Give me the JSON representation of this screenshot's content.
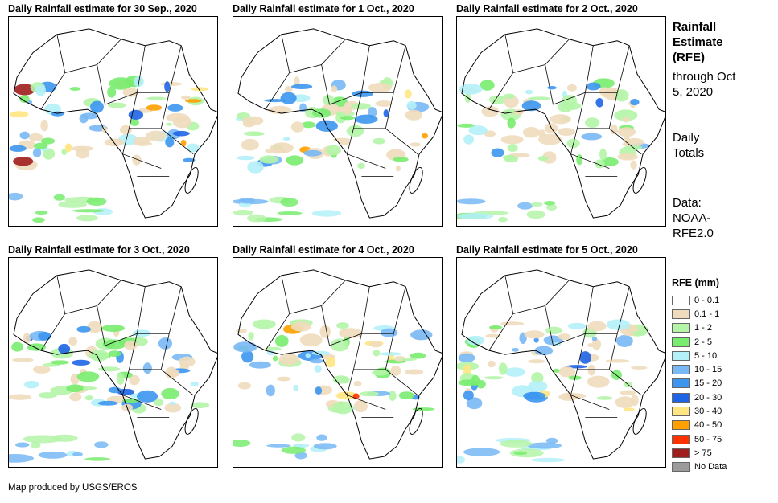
{
  "panels": [
    {
      "title": "Daily Rainfall estimate for 30 Sep., 2020",
      "seed": 11,
      "intensity": 1.0
    },
    {
      "title": "Daily Rainfall estimate for 1 Oct., 2020",
      "seed": 23,
      "intensity": 0.8
    },
    {
      "title": "Daily Rainfall estimate for 2 Oct., 2020",
      "seed": 37,
      "intensity": 0.6
    },
    {
      "title": "Daily Rainfall estimate for 3 Oct., 2020",
      "seed": 41,
      "intensity": 0.7
    },
    {
      "title": "Daily Rainfall estimate for 4 Oct., 2020",
      "seed": 53,
      "intensity": 0.9
    },
    {
      "title": "Daily Rainfall estimate for 5 Oct., 2020",
      "seed": 67,
      "intensity": 0.8
    }
  ],
  "side": {
    "title": "Rainfall Estimate (RFE)",
    "through": "through Oct 5, 2020",
    "totals": "Daily Totals",
    "source": "Data: NOAA-RFE2.0"
  },
  "legend": {
    "title": "RFE (mm)",
    "items": [
      {
        "label": "0 - 0.1",
        "color": "#ffffff"
      },
      {
        "label": "0.1 - 1",
        "color": "#f0dcbc"
      },
      {
        "label": "1 - 2",
        "color": "#b4f5a8"
      },
      {
        "label": "2 - 5",
        "color": "#78ec6e"
      },
      {
        "label": "5 - 10",
        "color": "#b4f0f8"
      },
      {
        "label": "10 - 15",
        "color": "#78b8f4"
      },
      {
        "label": "15 - 20",
        "color": "#3c96f0"
      },
      {
        "label": "20 - 30",
        "color": "#1e64e6"
      },
      {
        "label": "30 - 40",
        "color": "#ffe682"
      },
      {
        "label": "40 - 50",
        "color": "#ffa000"
      },
      {
        "label": "50 - 75",
        "color": "#ff3200"
      },
      {
        "label": "> 75",
        "color": "#a01e1e"
      },
      {
        "label": "No Data",
        "color": "#9b9b9b"
      }
    ]
  },
  "footer": "Map produced by USGS/EROS"
}
